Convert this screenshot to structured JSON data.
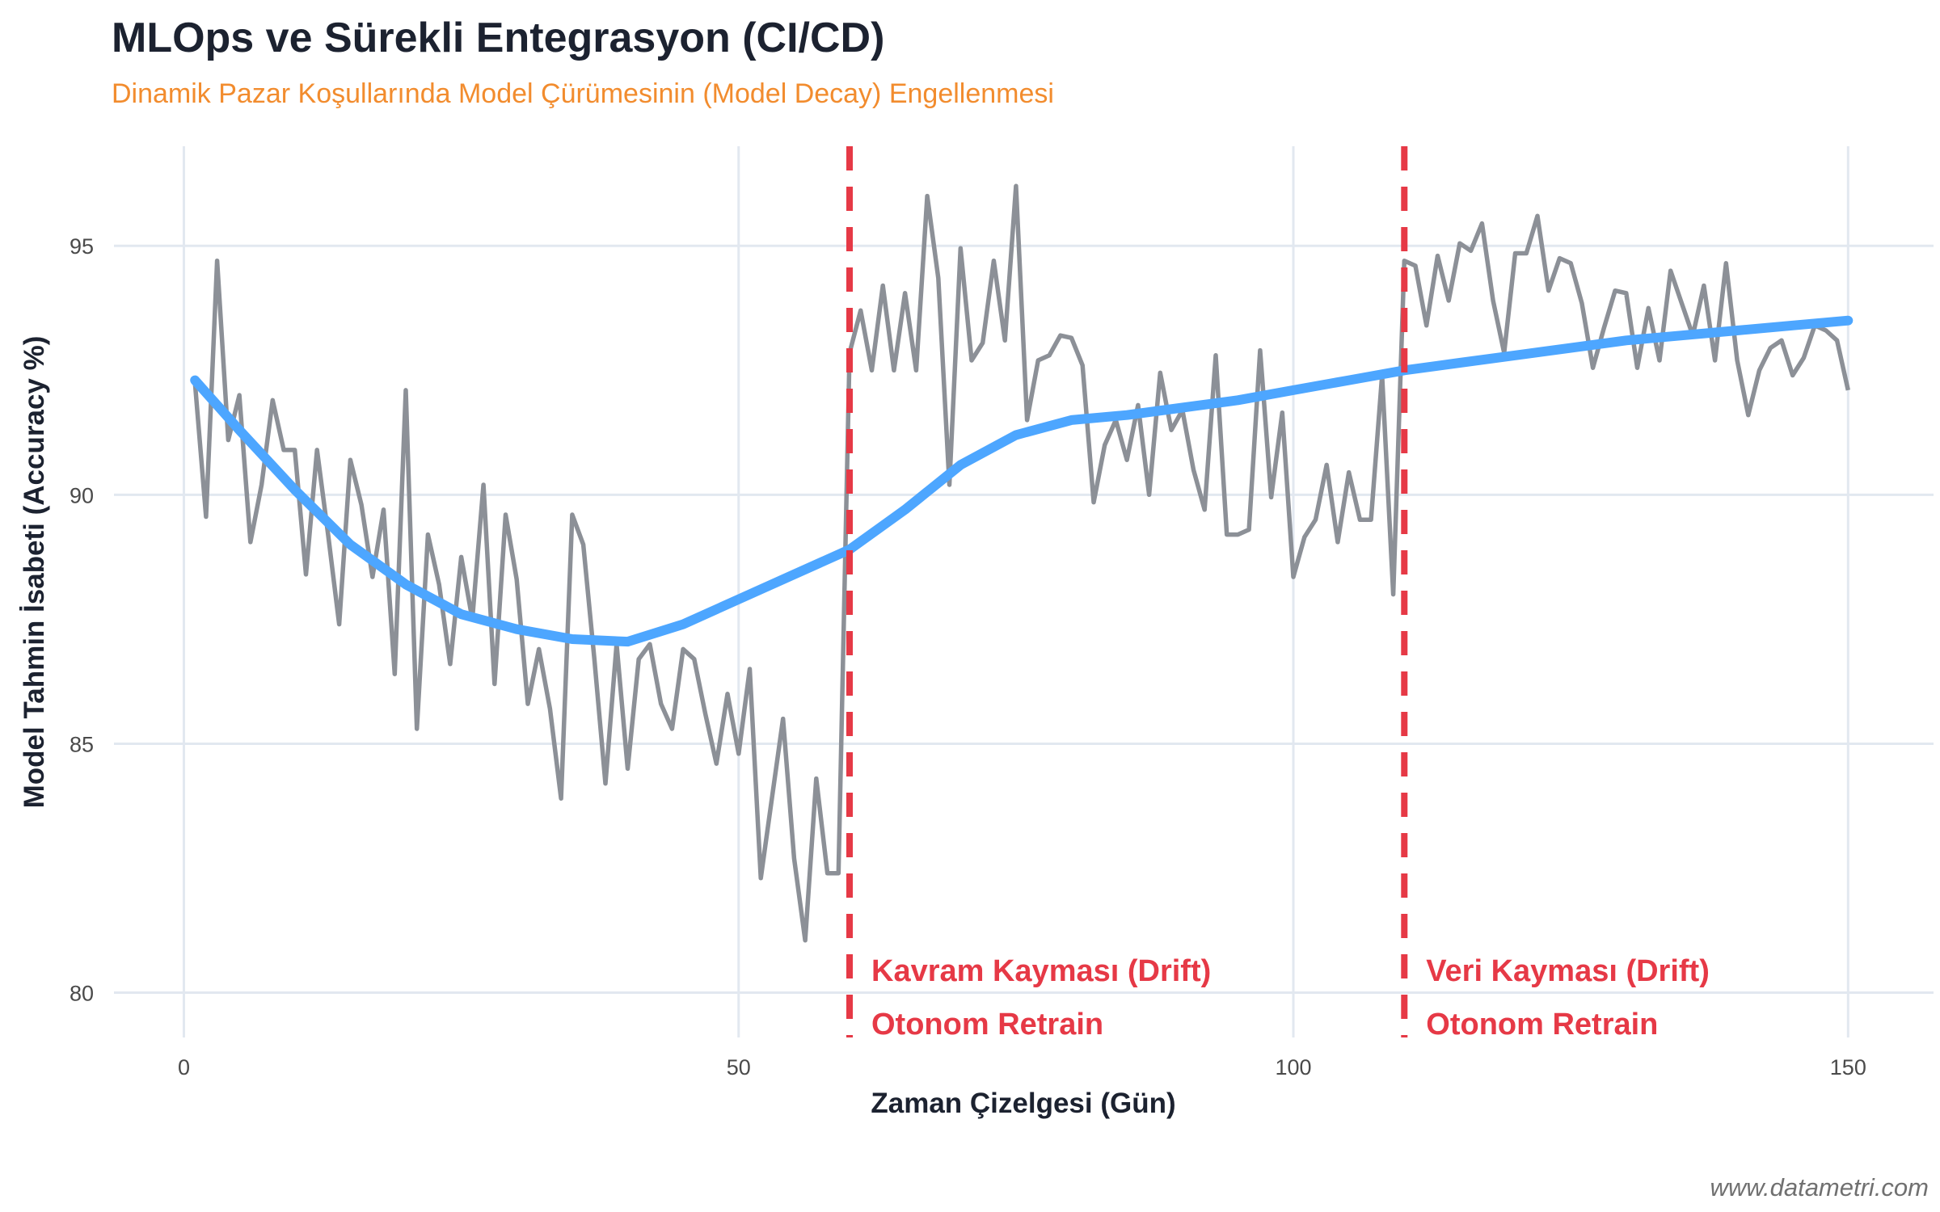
{
  "chart_data": {
    "type": "line",
    "title": "MLOps ve Sürekli Entegrasyon (CI/CD)",
    "subtitle": "Dinamik Pazar Koşullarında Model Çürümesinin (Model Decay) Engellenmesi",
    "xlabel": "Zaman Çizelgesi (Gün)",
    "ylabel": "Model Tahmin İsabeti (Accuracy %)",
    "xlim": [
      -6.3,
      157.7
    ],
    "ylim": [
      79.1,
      97.0
    ],
    "xticks": [
      0,
      50,
      100,
      150
    ],
    "yticks": [
      80,
      85,
      90,
      95
    ],
    "grid": true,
    "legend": "none",
    "colors": {
      "raw": "#8c9097",
      "trend": "#4da6ff",
      "event": "#e63946",
      "title": "#1c2230",
      "subtitle": "#f28c2e"
    },
    "series": [
      {
        "x_start": 1,
        "values": [
          92.25,
          89.56,
          94.7,
          91.1,
          92.0,
          89.05,
          90.2,
          91.9,
          90.9,
          90.9,
          88.4,
          90.9,
          89.2,
          87.4,
          90.7,
          89.8,
          88.35,
          89.7,
          86.4,
          92.1,
          85.3,
          89.2,
          88.2,
          86.6,
          88.75,
          87.5,
          90.2,
          86.2,
          89.6,
          88.3,
          85.8,
          86.9,
          85.7,
          83.9,
          89.6,
          89.0,
          86.7,
          84.2,
          87.0,
          84.5,
          86.7,
          87.0,
          85.8,
          85.3,
          86.9,
          86.7,
          85.6,
          84.6,
          86.0,
          84.8,
          86.5,
          82.3,
          83.9,
          85.5,
          82.7,
          81.05,
          84.3,
          82.4,
          82.4,
          92.85,
          93.7,
          92.5,
          94.2,
          92.5,
          94.05,
          92.5,
          96.0,
          94.35,
          90.2,
          94.95,
          92.7,
          93.05,
          94.7,
          93.1,
          96.2,
          91.5,
          92.7,
          92.8,
          93.2,
          93.15,
          92.6,
          89.85,
          91.0,
          91.5,
          90.7,
          91.8,
          90.0,
          92.45,
          91.3,
          91.7,
          90.5,
          89.7,
          92.8,
          89.2,
          89.2,
          89.3,
          92.9,
          89.95,
          91.65,
          88.35,
          89.15,
          89.5,
          90.6,
          89.05,
          90.45,
          89.5,
          89.5,
          92.4,
          88.0,
          94.7,
          94.6,
          93.4,
          94.8,
          93.9,
          95.05,
          94.9,
          95.45,
          93.9,
          92.85,
          94.85,
          94.85,
          95.6,
          94.1,
          94.75,
          94.65,
          93.85,
          92.55,
          93.35,
          94.1,
          94.05,
          92.55,
          93.75,
          92.7,
          94.5,
          93.85,
          93.2,
          94.2,
          92.7,
          94.65,
          92.7,
          91.6,
          92.5,
          92.95,
          93.1,
          92.4,
          92.75,
          93.4,
          93.3,
          93.1,
          92.1
        ]
      },
      {
        "x": [
          1,
          5,
          10,
          15,
          20,
          25,
          30,
          35,
          40,
          45,
          50,
          55,
          60,
          65,
          70,
          75,
          80,
          85,
          90,
          95,
          100,
          105,
          110,
          115,
          120,
          125,
          130,
          135,
          140,
          145,
          150
        ],
        "values": [
          92.3,
          91.3,
          90.1,
          89.0,
          88.2,
          87.6,
          87.3,
          87.1,
          87.05,
          87.4,
          87.9,
          88.4,
          88.9,
          89.7,
          90.6,
          91.2,
          91.5,
          91.6,
          91.75,
          91.9,
          92.1,
          92.3,
          92.5,
          92.65,
          92.8,
          92.95,
          93.1,
          93.2,
          93.3,
          93.4,
          93.5
        ]
      }
    ],
    "events": [
      {
        "x": 60,
        "line1": "Kavram Kayması (Drift)",
        "line2": "Otonom Retrain"
      },
      {
        "x": 110,
        "line1": "Veri Kayması (Drift)",
        "line2": "Otonom Retrain"
      }
    ],
    "watermark": "www.datametri.com"
  }
}
